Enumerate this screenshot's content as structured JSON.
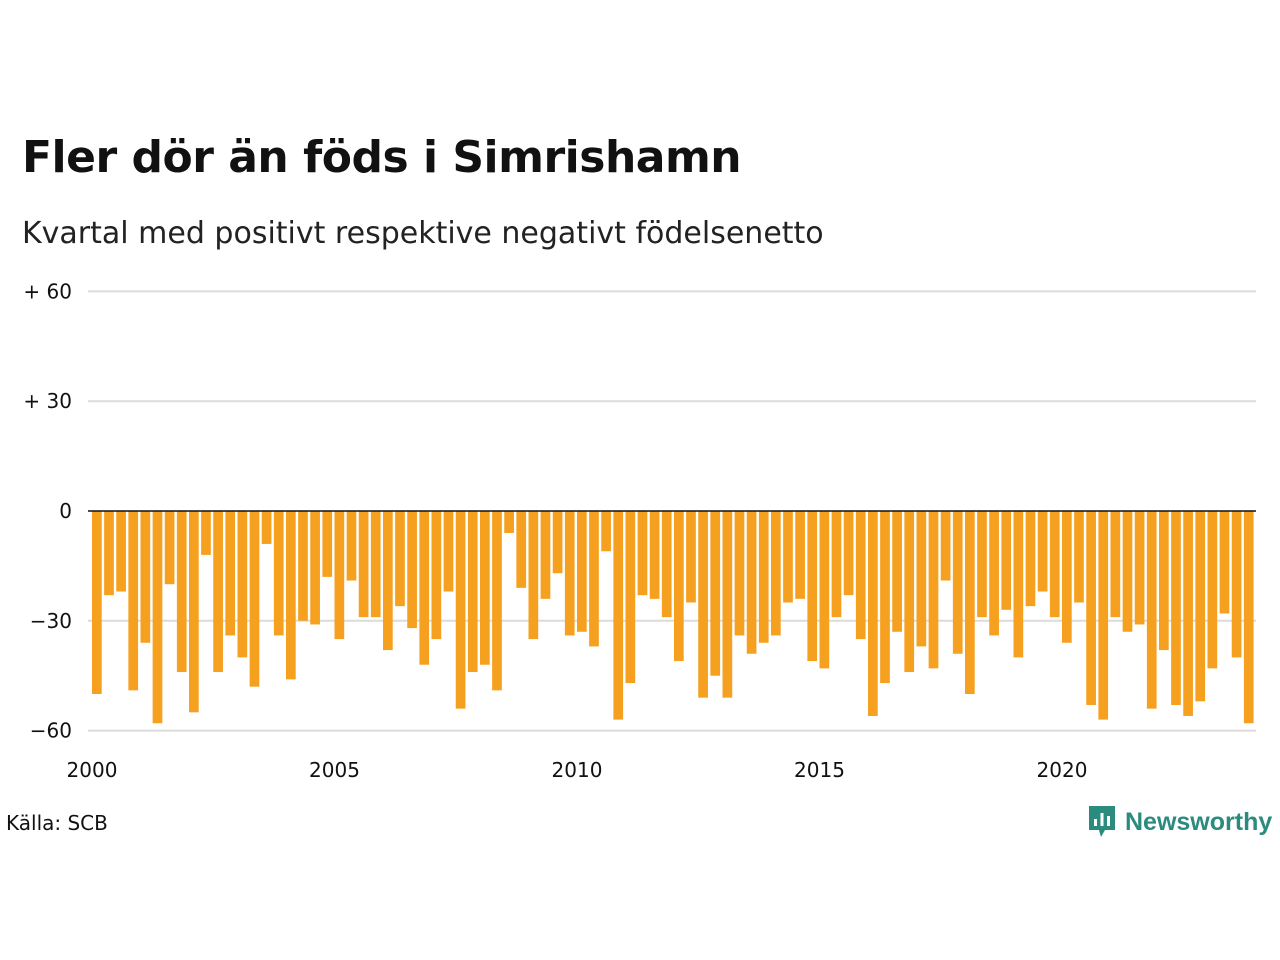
{
  "title": "Fler dör än föds i Simrishamn",
  "subtitle": "Kvartal med positivt respektive negativt födelsenetto",
  "source": "Källa: SCB",
  "brand": {
    "name": "Newsworthy",
    "icon": "newsworthy-logo-icon",
    "color": "#2a8b7e"
  },
  "chart_data": {
    "type": "bar",
    "bar_color": "#f6a01f",
    "x_start": 2000,
    "x_ticks": [
      "2000",
      "2005",
      "2010",
      "2015",
      "2020"
    ],
    "y_ticks": [
      {
        "value": 60,
        "label": "+ 60"
      },
      {
        "value": 30,
        "label": "+ 30"
      },
      {
        "value": 0,
        "label": "0"
      },
      {
        "value": -30,
        "label": "−30"
      },
      {
        "value": -60,
        "label": "−60"
      }
    ],
    "ylim": [
      -60,
      60
    ],
    "grid": true,
    "values": [
      -50,
      -23,
      -22,
      -49,
      -36,
      -58,
      -20,
      -44,
      -55,
      -12,
      -44,
      -34,
      -40,
      -48,
      -9,
      -34,
      -46,
      -30,
      -31,
      -18,
      -35,
      -19,
      -29,
      -29,
      -38,
      -26,
      -32,
      -42,
      -35,
      -22,
      -54,
      -44,
      -42,
      -49,
      -6,
      -21,
      -35,
      -24,
      -17,
      -34,
      -33,
      -37,
      -11,
      -57,
      -47,
      -23,
      -24,
      -29,
      -41,
      -25,
      -51,
      -45,
      -51,
      -34,
      -39,
      -36,
      -34,
      -25,
      -24,
      -41,
      -43,
      -29,
      -23,
      -35,
      -56,
      -47,
      -33,
      -44,
      -37,
      -43,
      -19,
      -39,
      -50,
      -29,
      -34,
      -27,
      -40,
      -26,
      -22,
      -29,
      -36,
      -25,
      -53,
      -57,
      -29,
      -33,
      -31,
      -54,
      -38,
      -53,
      -56,
      -52,
      -43,
      -28,
      -40,
      -58
    ]
  }
}
